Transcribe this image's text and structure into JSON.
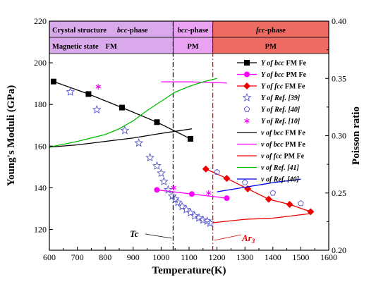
{
  "chart_data": {
    "type": "scatter",
    "title": "",
    "xlabel": "Temperature(K)",
    "ylabel_left": "Young's Moduli (GPa)",
    "ylabel_right": "Poisson ratio",
    "xlim": [
      600,
      1600
    ],
    "ylim_left": [
      110,
      220
    ],
    "ylim_right": [
      0.2,
      0.4
    ],
    "x_ticks": [
      600,
      700,
      800,
      900,
      1000,
      1100,
      1200,
      1300,
      1400,
      1500,
      1600
    ],
    "y_left_ticks": [
      120,
      140,
      160,
      180,
      200,
      220
    ],
    "y_right_ticks": [
      0.2,
      0.25,
      0.3,
      0.35,
      0.4
    ],
    "grid": false,
    "legend_position": "right, inside plot",
    "header_rows": [
      {
        "label": "Crystal structure",
        "cells": [
          {
            "text": "bcc-phase",
            "italic_prefix": "bcc",
            "from": 600,
            "to": 1043,
            "color": "#d9a9ec"
          },
          {
            "text": "bcc-phase",
            "italic_prefix": "bcc",
            "from": 1043,
            "to": 1185,
            "color": "#e9a3f2"
          },
          {
            "text": "fcc-phase",
            "italic_prefix": "fcc",
            "from": 1185,
            "to": 1600,
            "color": "#ed6b63"
          }
        ]
      },
      {
        "label": "Magnetic state",
        "cells": [
          {
            "text": "FM",
            "from": 600,
            "to": 1043,
            "color": "#d9a9ec"
          },
          {
            "text": "PM",
            "from": 1043,
            "to": 1185,
            "color": "#e9a3f2"
          },
          {
            "text": "PM",
            "from": 1185,
            "to": 1600,
            "color": "#ed6b63"
          }
        ]
      }
    ],
    "vlines": [
      {
        "x": 1043,
        "color": "#000000",
        "label": "Tc"
      },
      {
        "x": 1185,
        "color": "#dd0000",
        "label": "Ar3"
      }
    ],
    "series": [
      {
        "name": "Y of bcc FM Fe",
        "axis": "left",
        "color": "#000000",
        "marker": "square",
        "line": true,
        "x": [
          615,
          740,
          860,
          985,
          1105
        ],
        "y": [
          191,
          185,
          178.5,
          171.5,
          163.5
        ]
      },
      {
        "name": "Y of bcc PM Fe",
        "axis": "left",
        "color": "#ff00ff",
        "marker": "circle",
        "line": true,
        "x": [
          985,
          1110,
          1235
        ],
        "y": [
          139,
          137,
          135
        ]
      },
      {
        "name": "Y of fcc FM Fe",
        "axis": "left",
        "color": "#ee0000",
        "marker": "diamond",
        "line": true,
        "x": [
          1160,
          1235,
          1310,
          1385,
          1460,
          1535
        ],
        "y": [
          149,
          144.5,
          139.5,
          134.5,
          132,
          128.5
        ]
      },
      {
        "name": "Y of Ref. [39]",
        "axis": "left",
        "color": "#5555cc",
        "marker": "star",
        "line": false,
        "x": [
          675,
          770,
          870,
          920,
          960,
          985,
          1000,
          1010,
          1025,
          1040,
          1050,
          1060,
          1075,
          1090,
          1105,
          1120,
          1135,
          1150,
          1165,
          1175
        ],
        "y": [
          186,
          177.5,
          167.5,
          161.5,
          154.5,
          150.5,
          147,
          143,
          139,
          136,
          134.5,
          133,
          131,
          129.5,
          128,
          126.5,
          125.5,
          124.5,
          124,
          123
        ]
      },
      {
        "name": "Y of Ref. [40]",
        "axis": "left",
        "color": "#5555cc",
        "marker": "pentagon",
        "line": false,
        "x": [
          1200,
          1300,
          1400,
          1500
        ],
        "y": [
          147.5,
          142.5,
          137.5,
          132.5
        ]
      },
      {
        "name": "Y of Ref. [10]",
        "axis": "left",
        "color": "#ff00ff",
        "marker": "asterisk",
        "line": false,
        "x": [
          775,
          1045,
          1170
        ],
        "y": [
          188.5,
          140,
          137.5
        ]
      },
      {
        "name": "v of bcc FM Fe",
        "axis": "right",
        "color": "#000000",
        "marker": "none",
        "line": true,
        "x": [
          600,
          700,
          800,
          900,
          1000,
          1110
        ],
        "y": [
          0.29,
          0.292,
          0.295,
          0.298,
          0.302,
          0.306
        ]
      },
      {
        "name": "v of bcc PM Fe",
        "axis": "right",
        "color": "#ff00ff",
        "marker": "none",
        "line": true,
        "x": [
          1000,
          1110,
          1235
        ],
        "y": [
          0.347,
          0.347,
          0.346
        ]
      },
      {
        "name": "v of fcc PM Fe",
        "axis": "right",
        "color": "#ee0000",
        "marker": "none",
        "line": true,
        "x": [
          1185,
          1300,
          1400,
          1535
        ],
        "y": [
          0.224,
          0.227,
          0.228,
          0.232
        ]
      },
      {
        "name": "v of Ref. [41]",
        "axis": "right",
        "color": "#00bb00",
        "marker": "none",
        "line": true,
        "x": [
          600,
          700,
          800,
          850,
          900,
          950,
          1000,
          1050,
          1100,
          1150,
          1200
        ],
        "y": [
          0.29,
          0.295,
          0.301,
          0.306,
          0.313,
          0.322,
          0.33,
          0.338,
          0.343,
          0.347,
          0.35
        ]
      },
      {
        "name": "v of Ref. [40]",
        "axis": "right",
        "color": "#0000ee",
        "marker": "none",
        "line": true,
        "x": [
          1200,
          1300,
          1400,
          1500
        ],
        "y": [
          0.251,
          0.255,
          0.259,
          0.262
        ]
      }
    ]
  }
}
